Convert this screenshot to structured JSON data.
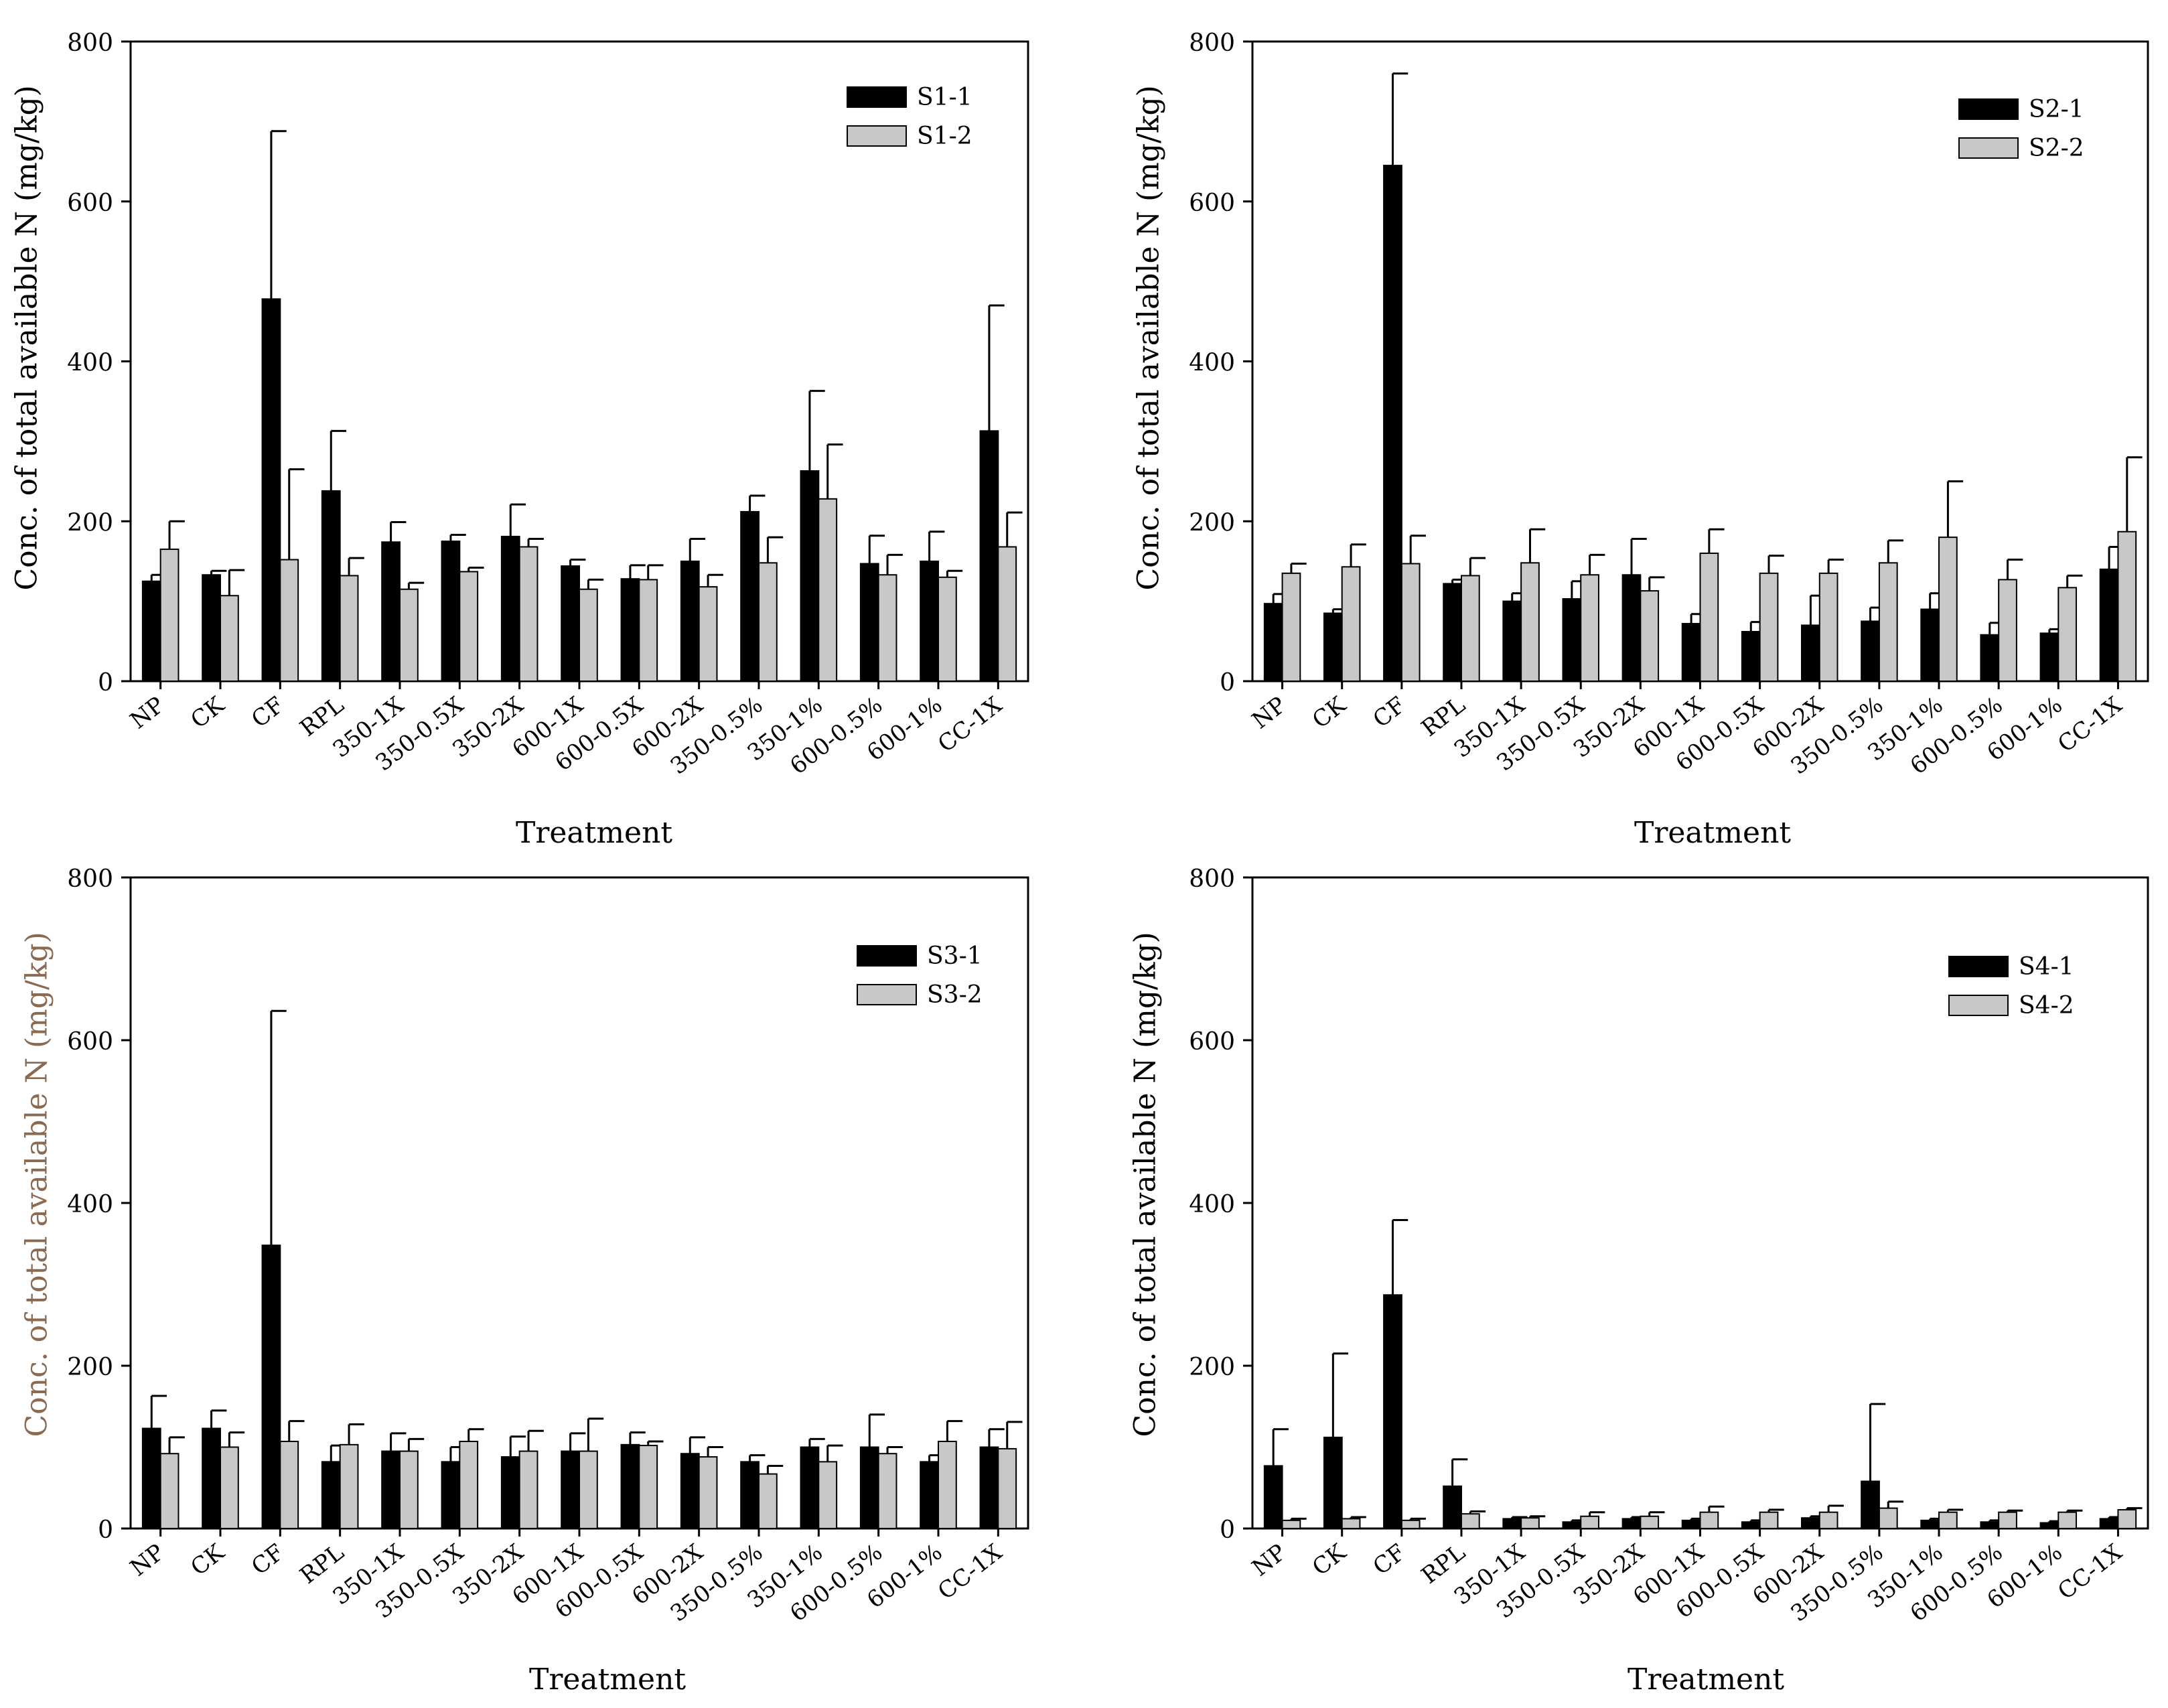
{
  "chart_data": [
    {
      "type": "bar",
      "categories": [
        "NP",
        "CK",
        "CF",
        "RPL",
        "350-1X",
        "350-0.5X",
        "350-2X",
        "600-1X",
        "600-0.5X",
        "600-2X",
        "350-0.5%",
        "350-1%",
        "600-0.5%",
        "600-1%",
        "CC-1X"
      ],
      "series": [
        {
          "name": "S1-1",
          "color": "#000000",
          "values": [
            125,
            133,
            478,
            238,
            174,
            175,
            181,
            144,
            128,
            150,
            212,
            263,
            147,
            150,
            313
          ],
          "errors": [
            8,
            5,
            210,
            75,
            25,
            8,
            40,
            8,
            17,
            28,
            20,
            100,
            35,
            37,
            157
          ]
        },
        {
          "name": "S1-2",
          "color": "#c8c8c8",
          "values": [
            165,
            107,
            152,
            132,
            115,
            137,
            168,
            115,
            127,
            118,
            148,
            228,
            133,
            130,
            168
          ],
          "errors": [
            35,
            32,
            113,
            22,
            8,
            5,
            10,
            12,
            18,
            15,
            32,
            68,
            25,
            8,
            43
          ]
        }
      ],
      "title": "",
      "xlabel": "Treatment",
      "ylabel": "Conc. of total available N (mg/kg)",
      "ylim": [
        0,
        800
      ],
      "yticks": [
        0,
        200,
        400,
        600,
        800
      ],
      "legend": "top-right",
      "ylabel_color": "#000000"
    },
    {
      "type": "bar",
      "categories": [
        "NP",
        "CK",
        "CF",
        "RPL",
        "350-1X",
        "350-0.5X",
        "350-2X",
        "600-1X",
        "600-0.5X",
        "600-2X",
        "350-0.5%",
        "350-1%",
        "600-0.5%",
        "600-1%",
        "CC-1X"
      ],
      "series": [
        {
          "name": "S2-1",
          "color": "#000000",
          "values": [
            97,
            85,
            645,
            122,
            100,
            103,
            133,
            72,
            62,
            70,
            75,
            90,
            58,
            60,
            140
          ],
          "errors": [
            12,
            5,
            115,
            5,
            10,
            22,
            45,
            12,
            12,
            37,
            17,
            20,
            15,
            5,
            28
          ]
        },
        {
          "name": "S2-2",
          "color": "#c8c8c8",
          "values": [
            135,
            143,
            147,
            132,
            148,
            133,
            113,
            160,
            135,
            135,
            148,
            180,
            127,
            117,
            187
          ],
          "errors": [
            12,
            28,
            35,
            22,
            42,
            25,
            17,
            30,
            22,
            17,
            28,
            70,
            25,
            15,
            93
          ]
        }
      ],
      "title": "",
      "xlabel": "Treatment",
      "ylabel": "Conc. of total available N (mg/kg)",
      "ylim": [
        0,
        800
      ],
      "yticks": [
        0,
        200,
        400,
        600,
        800
      ],
      "legend": "top-right",
      "ylabel_color": "#000000"
    },
    {
      "type": "bar",
      "categories": [
        "NP",
        "CK",
        "CF",
        "RPL",
        "350-1X",
        "350-0.5X",
        "350-2X",
        "600-1X",
        "600-0.5X",
        "600-2X",
        "350-0.5%",
        "350-1%",
        "600-0.5%",
        "600-1%",
        "CC-1X"
      ],
      "series": [
        {
          "name": "S3-1",
          "color": "#000000",
          "values": [
            123,
            123,
            348,
            82,
            95,
            82,
            88,
            95,
            103,
            92,
            82,
            100,
            100,
            82,
            100
          ],
          "errors": [
            40,
            22,
            288,
            20,
            22,
            18,
            25,
            22,
            15,
            20,
            8,
            10,
            40,
            8,
            22
          ]
        },
        {
          "name": "S3-2",
          "color": "#c8c8c8",
          "values": [
            92,
            100,
            107,
            103,
            95,
            107,
            95,
            95,
            102,
            88,
            67,
            82,
            92,
            107,
            98
          ],
          "errors": [
            20,
            18,
            25,
            25,
            15,
            15,
            25,
            40,
            5,
            12,
            10,
            20,
            8,
            25,
            33
          ]
        }
      ],
      "title": "",
      "xlabel": "Treatment",
      "ylabel": "Conc. of total available N (mg/kg)",
      "ylim": [
        0,
        800
      ],
      "yticks": [
        0,
        200,
        400,
        600,
        800
      ],
      "legend": "top-right",
      "ylabel_color": "#8b6a52"
    },
    {
      "type": "bar",
      "categories": [
        "NP",
        "CK",
        "CF",
        "RPL",
        "350-1X",
        "350-0.5X",
        "350-2X",
        "600-1X",
        "600-0.5X",
        "600-2X",
        "350-0.5%",
        "350-1%",
        "600-0.5%",
        "600-1%",
        "CC-1X"
      ],
      "series": [
        {
          "name": "S4-1",
          "color": "#000000",
          "values": [
            77,
            112,
            287,
            52,
            12,
            8,
            12,
            10,
            8,
            13,
            58,
            10,
            8,
            7,
            12
          ],
          "errors": [
            45,
            103,
            92,
            33,
            2,
            2,
            2,
            2,
            2,
            2,
            95,
            2,
            2,
            2,
            2
          ]
        },
        {
          "name": "S4-2",
          "color": "#c8c8c8",
          "values": [
            10,
            12,
            10,
            18,
            13,
            15,
            15,
            20,
            20,
            20,
            25,
            20,
            20,
            20,
            23
          ],
          "errors": [
            2,
            2,
            2,
            3,
            2,
            5,
            5,
            7,
            3,
            8,
            8,
            3,
            2,
            2,
            2
          ]
        }
      ],
      "title": "",
      "xlabel": "Treatment",
      "ylabel": "Conc. of total available N (mg/kg)",
      "ylim": [
        0,
        800
      ],
      "yticks": [
        0,
        200,
        400,
        600,
        800
      ],
      "legend": "top-right",
      "ylabel_color": "#000000"
    }
  ]
}
